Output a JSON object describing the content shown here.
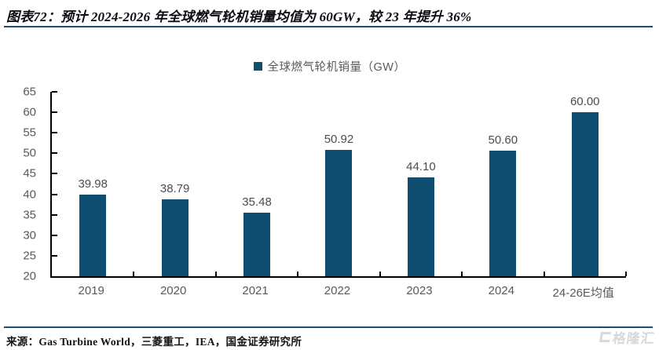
{
  "figure": {
    "title": "图表72：预计 2024-2026 年全球燃气轮机销量均值为 60GW，较 23 年提升 36%",
    "source": "来源：Gas Turbine World，三菱重工，IEA，国金证券研究所",
    "watermark": "格隆汇"
  },
  "legend": {
    "label": "全球燃气轮机销量（GW）"
  },
  "chart_data": {
    "type": "bar",
    "title": "",
    "xlabel": "",
    "ylabel": "",
    "categories": [
      "2019",
      "2020",
      "2021",
      "2022",
      "2023",
      "2024",
      "24-26E均值"
    ],
    "values": [
      39.98,
      38.79,
      35.48,
      50.92,
      44.1,
      50.6,
      60.0
    ],
    "value_labels": [
      "39.98",
      "38.79",
      "35.48",
      "50.92",
      "44.10",
      "50.60",
      "60.00"
    ],
    "legend_entries": [
      "全球燃气轮机销量（GW）"
    ],
    "legend_position": "top-center",
    "ylim": [
      20,
      65
    ],
    "ytick_step": 5,
    "grid": false,
    "bar_color": "#0F4E71"
  },
  "colors": {
    "bar": "#0F4E71",
    "rule": "#1E4C6E",
    "axis": "#000000",
    "tick_label": "#595959",
    "value_label": "#4D4D4D",
    "watermark": "#D4D9DE"
  }
}
